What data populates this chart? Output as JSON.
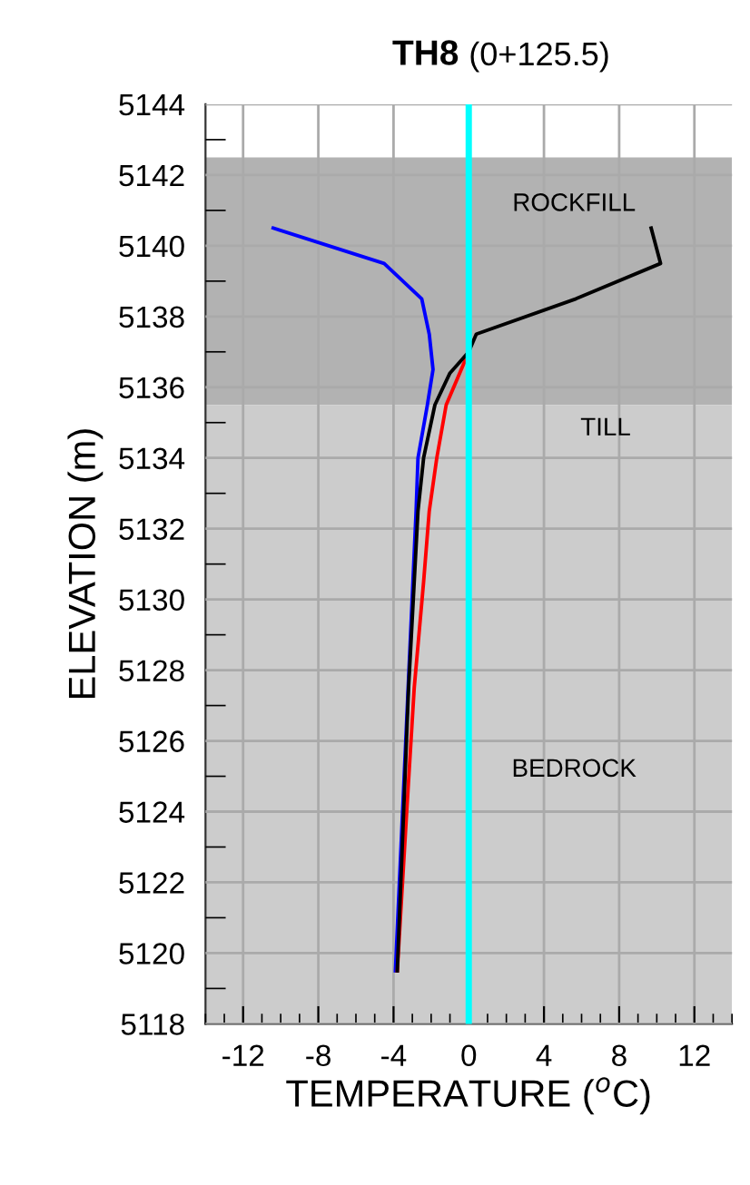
{
  "chart_data": {
    "type": "line",
    "title": "TH8 (0+125.5)",
    "xlabel": "TEMPERATURE ($^{o}$C)",
    "ylabel": "ELEVATION (m)",
    "series": [
      {
        "color": "#0000ff",
        "x": [
          -10.4,
          -4.5,
          -2.5,
          -2.1,
          -1.9,
          -2.2,
          -2.7,
          -2.8,
          -3.9
        ],
        "values": [
          5140.5,
          5139.5,
          5138.5,
          5137.5,
          5136.5,
          5135.5,
          5134,
          5132.5,
          5119.5
        ]
      },
      {
        "color": "#ff0000",
        "x": [
          0,
          -1.2,
          -1.7,
          -2.1,
          -2.4,
          -2.9,
          -3.3,
          -3.8
        ],
        "values": [
          5137,
          5135.5,
          5134,
          5132.5,
          5130.5,
          5127.5,
          5124,
          5119.5
        ]
      },
      {
        "color": "#000000",
        "x": [
          9.7,
          10.2,
          5.7,
          0.4,
          0,
          -1,
          -1.8,
          -2.4,
          -2.7,
          -3.2,
          -3.8
        ],
        "values": [
          5140.5,
          5139.5,
          5138.5,
          5137.5,
          5137,
          5136.4,
          5135.5,
          5134,
          5132.5,
          5127.5,
          5119.5
        ]
      }
    ],
    "xlim": [
      -14,
      14
    ],
    "xticks": [
      {
        "value": -14,
        "label": null
      },
      {
        "value": -13,
        "label": null
      },
      -12,
      {
        "value": -11,
        "label": null
      },
      {
        "value": -10,
        "label": null
      },
      {
        "value": -9,
        "label": null
      },
      -8,
      {
        "value": -7,
        "label": null
      },
      {
        "value": -6,
        "label": null
      },
      {
        "value": -5,
        "label": null
      },
      -4,
      {
        "value": -3,
        "label": null
      },
      {
        "value": -2,
        "label": null
      },
      {
        "value": -1,
        "label": null
      },
      0,
      {
        "value": 1,
        "label": null
      },
      {
        "value": 2,
        "label": null
      },
      {
        "value": 3,
        "label": null
      },
      4,
      {
        "value": 5,
        "label": null
      },
      {
        "value": 6,
        "label": null
      },
      {
        "value": 7,
        "label": null
      },
      8,
      {
        "value": 9,
        "label": null
      },
      {
        "value": 10,
        "label": null
      },
      {
        "value": 11,
        "label": null
      },
      12,
      {
        "value": 13,
        "label": null
      },
      {
        "value": 14,
        "label": null
      }
    ],
    "ylim": [
      5118,
      5144
    ],
    "yticks": [
      5118,
      {
        "value": 5119,
        "label": null
      },
      5120,
      {
        "value": 5121,
        "label": null
      },
      5122,
      {
        "value": 5123,
        "label": null
      },
      5124,
      {
        "value": 5125,
        "label": null
      },
      5126,
      {
        "value": 5127,
        "label": null
      },
      5128,
      {
        "value": 5129,
        "label": null
      },
      5130,
      {
        "value": 5131,
        "label": null
      },
      5132,
      {
        "value": 5133,
        "label": null
      },
      5134,
      {
        "value": 5135,
        "label": null
      },
      5136,
      {
        "value": 5137,
        "label": null
      },
      5138,
      {
        "value": 5139,
        "label": null
      },
      5140,
      {
        "value": 5141,
        "label": null
      },
      5142,
      {
        "value": 5143,
        "label": null
      },
      5144
    ],
    "bands": [
      {
        "axis": "y",
        "from": 5135.5,
        "to": 5142.5,
        "color": "#b2b2b2",
        "label": "ROCKFILL"
      },
      {
        "axis": "y",
        "from": 5118,
        "to": 5135.5,
        "color": "#cccccc",
        "label": "BEDROCK"
      }
    ],
    "ref_lines": [
      {
        "axis": "x",
        "value": 0,
        "color": "#00ffff"
      }
    ],
    "annotations": [
      "TILL"
    ],
    "grid": true,
    "line_style": "solid",
    "marker": "none"
  }
}
